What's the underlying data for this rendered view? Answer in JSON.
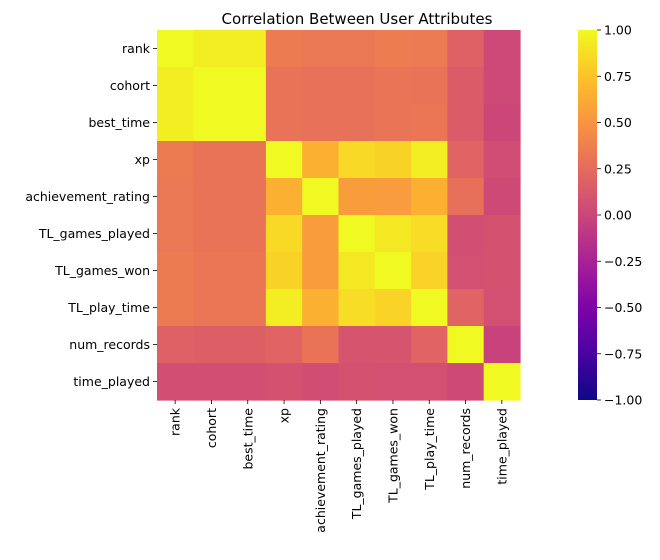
{
  "chart_data": {
    "type": "heatmap",
    "title": "Correlation Between User Attributes",
    "row_labels": [
      "rank",
      "cohort",
      "best_time",
      "xp",
      "achievement_rating",
      "TL_games_played",
      "TL_games_won",
      "TL_play_time",
      "num_records",
      "time_played"
    ],
    "col_labels": [
      "rank",
      "cohort",
      "best_time",
      "xp",
      "achievement_rating",
      "TL_games_played",
      "TL_games_won",
      "TL_play_time",
      "num_records",
      "time_played"
    ],
    "values": [
      [
        1.0,
        0.95,
        0.95,
        0.35,
        0.33,
        0.33,
        0.36,
        0.34,
        0.18,
        0.02
      ],
      [
        0.95,
        1.0,
        1.0,
        0.3,
        0.29,
        0.29,
        0.31,
        0.3,
        0.15,
        0.02
      ],
      [
        0.95,
        1.0,
        1.0,
        0.3,
        0.29,
        0.29,
        0.31,
        0.32,
        0.15,
        0.01
      ],
      [
        0.35,
        0.3,
        0.3,
        1.0,
        0.65,
        0.85,
        0.82,
        0.95,
        0.2,
        0.05
      ],
      [
        0.33,
        0.3,
        0.3,
        0.65,
        1.0,
        0.55,
        0.54,
        0.65,
        0.28,
        0.03
      ],
      [
        0.33,
        0.3,
        0.3,
        0.85,
        0.55,
        1.0,
        0.92,
        0.87,
        0.06,
        0.08
      ],
      [
        0.35,
        0.32,
        0.32,
        0.82,
        0.55,
        0.92,
        1.0,
        0.83,
        0.07,
        0.08
      ],
      [
        0.35,
        0.32,
        0.32,
        0.95,
        0.65,
        0.87,
        0.83,
        1.0,
        0.2,
        0.07
      ],
      [
        0.18,
        0.17,
        0.17,
        0.2,
        0.3,
        0.1,
        0.1,
        0.2,
        1.0,
        -0.02
      ],
      [
        0.06,
        0.06,
        0.06,
        0.08,
        0.05,
        0.08,
        0.07,
        0.07,
        0.03,
        1.0
      ]
    ],
    "colormap": "plasma",
    "vmin": -1.0,
    "vmax": 1.0,
    "colorbar_ticks": [
      "1.00",
      "0.75",
      "0.50",
      "0.25",
      "0.00",
      "−0.25",
      "−0.50",
      "−0.75",
      "−1.00"
    ],
    "colorbar_tick_values": [
      1.0,
      0.75,
      0.5,
      0.25,
      0.0,
      -0.25,
      -0.5,
      -0.75,
      -1.0
    ],
    "xlabel": "",
    "ylabel": ""
  }
}
